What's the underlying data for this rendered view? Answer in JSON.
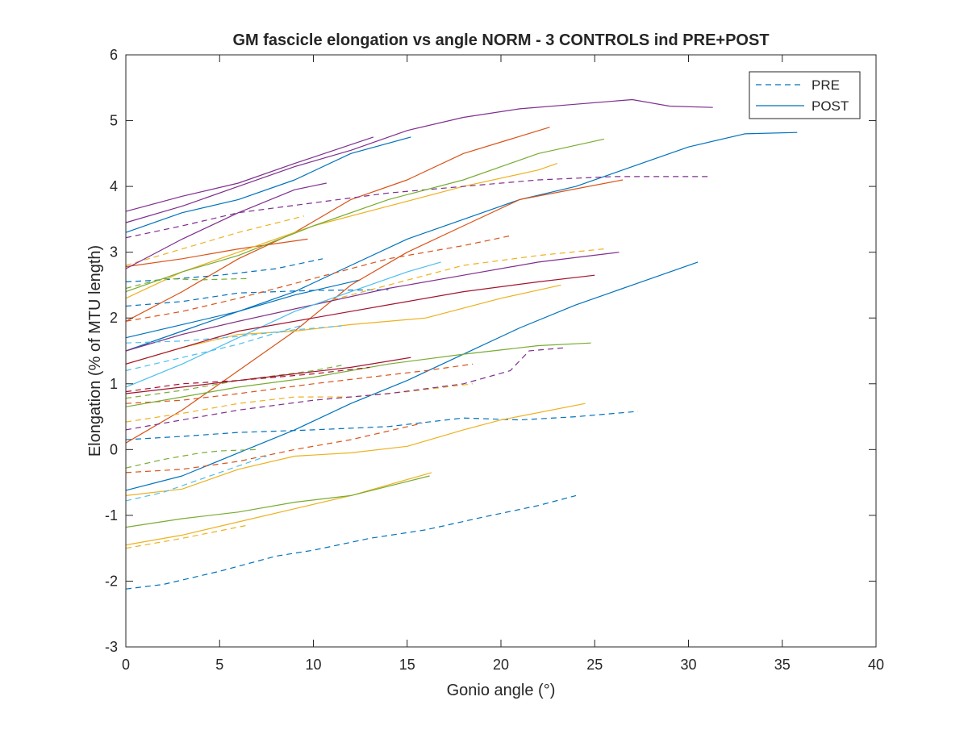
{
  "chart_data": {
    "type": "line",
    "title": "GM fascicle elongation vs angle NORM - 3 CONTROLS ind PRE+POST",
    "xlabel": "Gonio angle (°)",
    "ylabel": "Elongation (% of MTU length)",
    "xlim": [
      0,
      40
    ],
    "ylim": [
      -3,
      6
    ],
    "xticks": [
      "0",
      "5",
      "10",
      "15",
      "20",
      "25",
      "30",
      "35",
      "40"
    ],
    "yticks": [
      "-3",
      "-2",
      "-1",
      "0",
      "1",
      "2",
      "3",
      "4",
      "5",
      "6"
    ],
    "grid": false,
    "legend": {
      "placement": "top-right",
      "entries": [
        {
          "label": "PRE",
          "style": "dashed",
          "color": "#0072BD"
        },
        {
          "label": "POST",
          "style": "solid",
          "color": "#0072BD"
        }
      ]
    },
    "colors": {
      "blue": "#0072BD",
      "orange": "#D95319",
      "yellow": "#EDB120",
      "purple": "#7E2F8E",
      "green": "#77AC30",
      "cyan": "#4DBEEE",
      "red": "#A2142F"
    },
    "series": [
      {
        "color": "#0072BD",
        "style": "dashed",
        "x": [
          0,
          2,
          5,
          8,
          10,
          13,
          16,
          19,
          22,
          24
        ],
        "y": [
          -2.12,
          -2.05,
          -1.85,
          -1.62,
          -1.53,
          -1.35,
          -1.22,
          -1.03,
          -0.85,
          -0.7
        ]
      },
      {
        "color": "#0072BD",
        "style": "dashed",
        "x": [
          0,
          3,
          6,
          10,
          14,
          18,
          21,
          24,
          27.3
        ],
        "y": [
          0.15,
          0.2,
          0.26,
          0.3,
          0.35,
          0.48,
          0.45,
          0.5,
          0.58
        ]
      },
      {
        "color": "#0072BD",
        "style": "dashed",
        "x": [
          0,
          2,
          5,
          8,
          10.5
        ],
        "y": [
          2.55,
          2.58,
          2.65,
          2.75,
          2.9
        ]
      },
      {
        "color": "#0072BD",
        "style": "dashed",
        "x": [
          0,
          3,
          6,
          10,
          14
        ],
        "y": [
          2.18,
          2.25,
          2.38,
          2.42,
          2.43
        ]
      },
      {
        "color": "#0072BD",
        "style": "solid",
        "x": [
          0,
          3,
          6,
          9,
          12,
          15,
          18,
          21,
          24,
          27,
          30.5
        ],
        "y": [
          -0.62,
          -0.4,
          -0.05,
          0.3,
          0.7,
          1.05,
          1.45,
          1.85,
          2.2,
          2.5,
          2.85
        ]
      },
      {
        "color": "#0072BD",
        "style": "solid",
        "x": [
          0,
          3,
          6,
          9,
          12,
          15,
          18,
          21,
          24,
          27,
          30,
          33,
          35.8
        ],
        "y": [
          1.5,
          1.8,
          2.1,
          2.4,
          2.8,
          3.2,
          3.5,
          3.8,
          4.0,
          4.3,
          4.6,
          4.8,
          4.82
        ]
      },
      {
        "color": "#0072BD",
        "style": "solid",
        "x": [
          0,
          3,
          6,
          9,
          12.5
        ],
        "y": [
          1.7,
          1.9,
          2.1,
          2.35,
          2.58
        ]
      },
      {
        "color": "#0072BD",
        "style": "solid",
        "x": [
          0,
          3,
          6,
          9,
          12,
          15.2
        ],
        "y": [
          3.3,
          3.6,
          3.8,
          4.1,
          4.5,
          4.75
        ]
      },
      {
        "color": "#D95319",
        "style": "solid",
        "x": [
          0,
          3,
          6,
          9,
          12,
          15,
          18,
          22.6
        ],
        "y": [
          1.95,
          2.4,
          2.9,
          3.3,
          3.8,
          4.1,
          4.5,
          4.9
        ]
      },
      {
        "color": "#D95319",
        "style": "solid",
        "x": [
          0,
          3,
          6,
          9,
          12,
          15,
          18,
          21,
          26.5
        ],
        "y": [
          0.1,
          0.6,
          1.2,
          1.8,
          2.5,
          3.0,
          3.4,
          3.8,
          4.1
        ]
      },
      {
        "color": "#D95319",
        "style": "solid",
        "x": [
          0,
          3,
          6,
          9.7
        ],
        "y": [
          2.78,
          2.9,
          3.05,
          3.2
        ]
      },
      {
        "color": "#D95319",
        "style": "dashed",
        "x": [
          0,
          3,
          6,
          10,
          14,
          18,
          20.5
        ],
        "y": [
          1.95,
          2.1,
          2.3,
          2.6,
          2.9,
          3.1,
          3.25
        ]
      },
      {
        "color": "#D95319",
        "style": "dashed",
        "x": [
          0,
          3,
          6,
          10,
          13,
          16,
          18.5
        ],
        "y": [
          0.7,
          0.75,
          0.85,
          1.0,
          1.1,
          1.2,
          1.3
        ]
      },
      {
        "color": "#D95319",
        "style": "dashed",
        "x": [
          0,
          3,
          6,
          9,
          12,
          15.8
        ],
        "y": [
          -0.35,
          -0.3,
          -0.18,
          0.0,
          0.15,
          0.4
        ]
      },
      {
        "color": "#EDB120",
        "style": "solid",
        "x": [
          0,
          3,
          6,
          9,
          12,
          15,
          18,
          20,
          24.5
        ],
        "y": [
          -0.7,
          -0.6,
          -0.3,
          -0.1,
          -0.05,
          0.05,
          0.3,
          0.45,
          0.7
        ]
      },
      {
        "color": "#EDB120",
        "style": "solid",
        "x": [
          0,
          3,
          6,
          9,
          12,
          16.3
        ],
        "y": [
          -1.45,
          -1.3,
          -1.1,
          -0.9,
          -0.7,
          -0.35
        ]
      },
      {
        "color": "#EDB120",
        "style": "solid",
        "x": [
          0,
          3,
          6,
          9,
          12,
          16,
          20,
          23.2
        ],
        "y": [
          1.3,
          1.55,
          1.75,
          1.8,
          1.9,
          2.0,
          2.3,
          2.5
        ]
      },
      {
        "color": "#EDB120",
        "style": "solid",
        "x": [
          0,
          3,
          6,
          10,
          14,
          18,
          22,
          23.0
        ],
        "y": [
          2.3,
          2.7,
          3.0,
          3.4,
          3.7,
          4.0,
          4.25,
          4.35
        ]
      },
      {
        "color": "#EDB120",
        "style": "dashed",
        "x": [
          0,
          3,
          6,
          9,
          12,
          15,
          18.5
        ],
        "y": [
          0.42,
          0.55,
          0.7,
          0.8,
          0.8,
          0.88,
          1.0
        ]
      },
      {
        "color": "#EDB120",
        "style": "dashed",
        "x": [
          0,
          3,
          6,
          10,
          14,
          18,
          22,
          25.5
        ],
        "y": [
          1.5,
          1.75,
          1.95,
          2.2,
          2.5,
          2.8,
          2.95,
          3.05
        ]
      },
      {
        "color": "#EDB120",
        "style": "dashed",
        "x": [
          0,
          3,
          6,
          9.5
        ],
        "y": [
          2.8,
          3.05,
          3.3,
          3.55
        ]
      },
      {
        "color": "#EDB120",
        "style": "dashed",
        "x": [
          0,
          3,
          6.5
        ],
        "y": [
          -1.5,
          -1.35,
          -1.15
        ]
      },
      {
        "color": "#7E2F8E",
        "style": "solid",
        "x": [
          0,
          3,
          6,
          9,
          12,
          15,
          18,
          21,
          24,
          27,
          29,
          31.3
        ],
        "y": [
          3.45,
          3.7,
          4.0,
          4.3,
          4.55,
          4.85,
          5.05,
          5.18,
          5.25,
          5.32,
          5.22,
          5.2
        ]
      },
      {
        "color": "#7E2F8E",
        "style": "solid",
        "x": [
          0,
          3,
          6,
          9,
          13.2
        ],
        "y": [
          3.62,
          3.85,
          4.05,
          4.35,
          4.75
        ]
      },
      {
        "color": "#7E2F8E",
        "style": "solid",
        "x": [
          0,
          3,
          6,
          9,
          10.7
        ],
        "y": [
          2.75,
          3.2,
          3.6,
          3.95,
          4.05
        ]
      },
      {
        "color": "#7E2F8E",
        "style": "solid",
        "x": [
          0,
          3,
          6,
          10,
          14,
          18,
          22,
          26.3
        ],
        "y": [
          1.5,
          1.75,
          1.95,
          2.2,
          2.45,
          2.65,
          2.85,
          3.0
        ]
      },
      {
        "color": "#7E2F8E",
        "style": "dashed",
        "x": [
          0,
          3,
          6,
          10,
          14,
          18,
          22,
          26,
          31.2
        ],
        "y": [
          3.22,
          3.4,
          3.6,
          3.75,
          3.9,
          4.0,
          4.1,
          4.15,
          4.15
        ]
      },
      {
        "color": "#7E2F8E",
        "style": "dashed",
        "x": [
          0,
          3,
          6,
          10,
          14,
          18,
          20.5,
          21.5,
          23.5
        ],
        "y": [
          0.3,
          0.45,
          0.6,
          0.75,
          0.85,
          1.0,
          1.2,
          1.5,
          1.55
        ]
      },
      {
        "color": "#77AC30",
        "style": "solid",
        "x": [
          0,
          3,
          6,
          9,
          12,
          16.2
        ],
        "y": [
          -1.18,
          -1.05,
          -0.95,
          -0.8,
          -0.7,
          -0.4
        ]
      },
      {
        "color": "#77AC30",
        "style": "solid",
        "x": [
          0,
          3,
          6,
          10,
          14,
          18,
          22,
          24.8
        ],
        "y": [
          0.65,
          0.8,
          0.95,
          1.1,
          1.3,
          1.45,
          1.58,
          1.62
        ]
      },
      {
        "color": "#77AC30",
        "style": "solid",
        "x": [
          0,
          3,
          6,
          10,
          14,
          18,
          22,
          25.5
        ],
        "y": [
          2.4,
          2.7,
          2.95,
          3.4,
          3.8,
          4.1,
          4.5,
          4.72
        ]
      },
      {
        "color": "#77AC30",
        "style": "dashed",
        "x": [
          0,
          2,
          4,
          5,
          7
        ],
        "y": [
          -0.28,
          -0.15,
          -0.05,
          -0.02,
          0.0
        ]
      },
      {
        "color": "#77AC30",
        "style": "dashed",
        "x": [
          0,
          3,
          6,
          10,
          11.5
        ],
        "y": [
          0.78,
          0.9,
          1.05,
          1.2,
          1.28
        ]
      },
      {
        "color": "#77AC30",
        "style": "dashed",
        "x": [
          0,
          2,
          4,
          6.5
        ],
        "y": [
          2.45,
          2.6,
          2.58,
          2.6
        ]
      },
      {
        "color": "#4DBEEE",
        "style": "solid",
        "x": [
          0,
          3,
          6,
          9,
          12,
          15,
          16.8
        ],
        "y": [
          0.95,
          1.3,
          1.7,
          2.1,
          2.4,
          2.7,
          2.85
        ]
      },
      {
        "color": "#4DBEEE",
        "style": "dashed",
        "x": [
          0,
          2,
          4,
          6,
          7.5
        ],
        "y": [
          -0.78,
          -0.65,
          -0.45,
          -0.25,
          -0.1
        ]
      },
      {
        "color": "#4DBEEE",
        "style": "dashed",
        "x": [
          0,
          3,
          6,
          9,
          11.5
        ],
        "y": [
          1.62,
          1.65,
          1.72,
          1.82,
          1.88
        ]
      },
      {
        "color": "#4DBEEE",
        "style": "dashed",
        "x": [
          0,
          3,
          6,
          9.5
        ],
        "y": [
          1.2,
          1.4,
          1.6,
          1.9
        ]
      },
      {
        "color": "#A2142F",
        "style": "solid",
        "x": [
          0,
          3,
          6,
          10,
          14,
          18,
          22,
          25.0
        ],
        "y": [
          1.3,
          1.55,
          1.8,
          2.0,
          2.2,
          2.4,
          2.55,
          2.65
        ]
      },
      {
        "color": "#A2142F",
        "style": "solid",
        "x": [
          0,
          3,
          6,
          9,
          12,
          15.2
        ],
        "y": [
          0.85,
          0.95,
          1.05,
          1.15,
          1.25,
          1.4
        ]
      },
      {
        "color": "#A2142F",
        "style": "dashed",
        "x": [
          0,
          3,
          6,
          10,
          13
        ],
        "y": [
          0.88,
          1.0,
          1.05,
          1.15,
          1.25
        ]
      }
    ]
  }
}
